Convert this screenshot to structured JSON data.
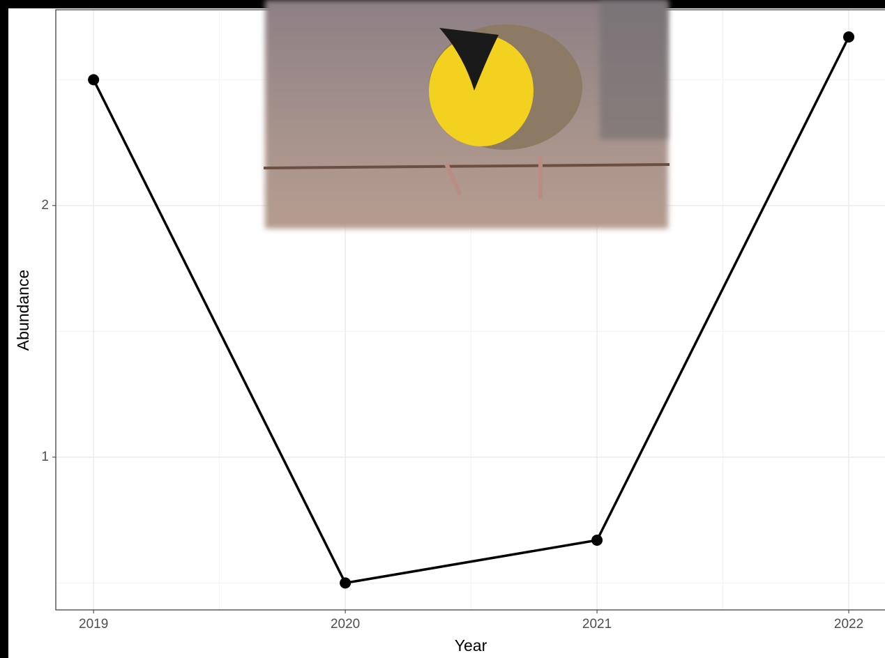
{
  "chart_data": {
    "type": "line",
    "x_label": "Year",
    "y_label": "Abundance",
    "x": [
      2019,
      2020,
      2021,
      2022
    ],
    "series": [
      {
        "color": "#000000",
        "values": [
          2.5,
          0.5,
          0.67,
          2.67
        ]
      }
    ],
    "xlim": [
      2018.85,
      2022.144
    ],
    "xticks": [
      2019,
      2020,
      2021,
      2022
    ],
    "xminorticks": [
      2019.5,
      2020.5,
      2021.5
    ],
    "ylim": [
      0.393,
      2.778
    ],
    "yticks": [
      1,
      2
    ],
    "yminorticks": [
      0.5,
      1.5,
      2.5
    ],
    "grid": true
  }
}
